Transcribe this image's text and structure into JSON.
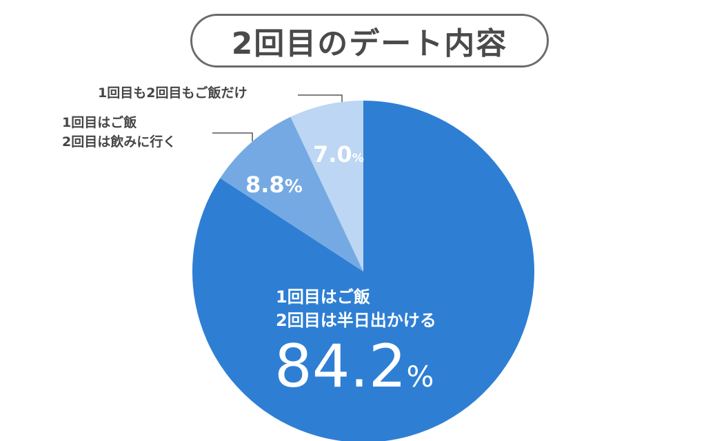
{
  "title": "2回目のデート内容",
  "chart_data": {
    "type": "pie",
    "start_angle": "12 o'clock, clockwise",
    "colors": [
      "#2e7fd4",
      "#75a9e3",
      "#bcd6f3"
    ],
    "slices": [
      {
        "label_lines": [
          "1回目はご飯",
          "2回目は半日出かける"
        ],
        "value": 84.2,
        "value_text": "84.2",
        "unit": "%"
      },
      {
        "label_lines": [
          "1回目はご飯",
          "2回目は飲みに行く"
        ],
        "value": 8.8,
        "value_text": "8.8",
        "unit": "%"
      },
      {
        "label_lines": [
          "1回目も2回目もご飯だけ"
        ],
        "value": 7.0,
        "value_text": "7.0",
        "unit": "%"
      }
    ]
  }
}
